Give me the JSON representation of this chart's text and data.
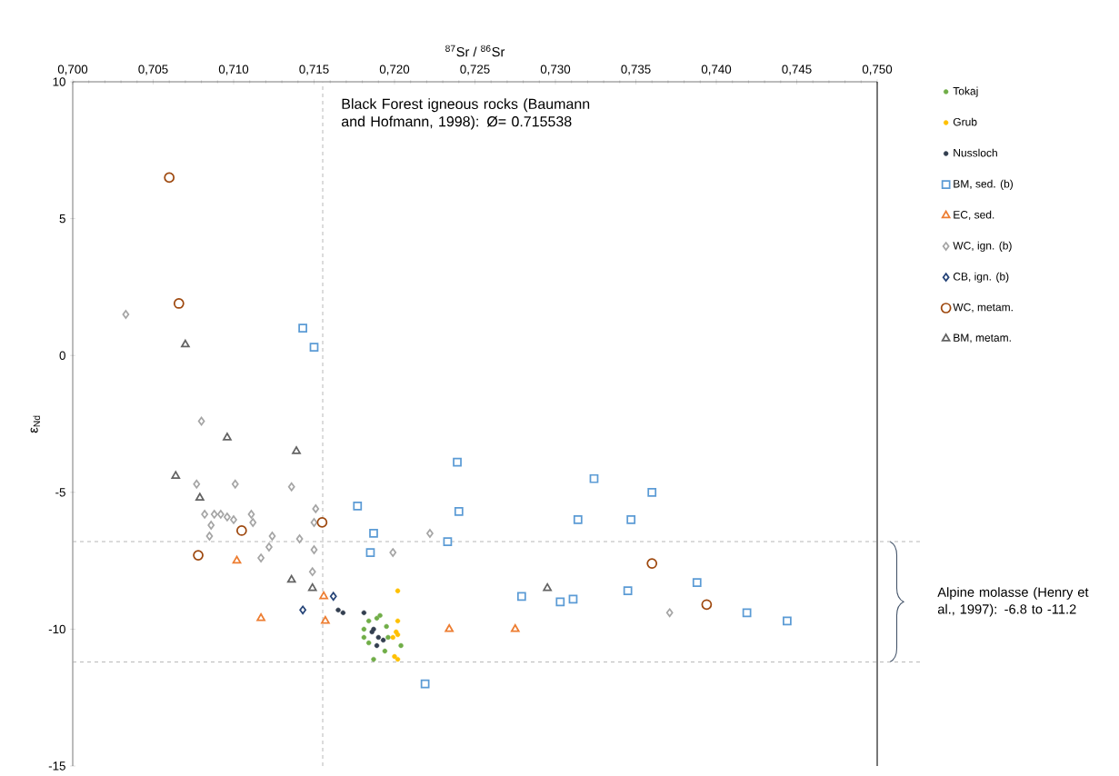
{
  "chart_data": {
    "type": "scatter",
    "xlabel": "$^{87}$Sr / $^{86}$Sr",
    "ylabel": "ε$_{Nd}$",
    "xlim": [
      0.7,
      0.75
    ],
    "xticks": [
      {
        "value": 0.7,
        "label": "0,700"
      },
      {
        "value": 0.705,
        "label": "0,705"
      },
      {
        "value": 0.71,
        "label": "0,710"
      },
      {
        "value": 0.715,
        "label": "0,715"
      },
      {
        "value": 0.72,
        "label": "0,720"
      },
      {
        "value": 0.725,
        "label": "0,725"
      },
      {
        "value": 0.73,
        "label": "0,730"
      },
      {
        "value": 0.735,
        "label": "0,735"
      },
      {
        "value": 0.74,
        "label": "0,740"
      },
      {
        "value": 0.745,
        "label": "0,745"
      },
      {
        "value": 0.75,
        "label": "0,750"
      }
    ],
    "ylim": [
      -15,
      10
    ],
    "yticks": [
      10,
      5,
      0,
      -5,
      -10,
      -15
    ],
    "legend": "right",
    "series": [
      {
        "name": "Tokaj",
        "color": "#70ad47",
        "x": [
          0.7191,
          0.7184,
          0.7195,
          0.7181,
          0.7181,
          0.7184,
          0.7194,
          0.7187,
          0.7204,
          0.7196,
          0.7191,
          0.7189
        ],
        "values": [
          -9.5,
          -9.7,
          -9.9,
          -10.0,
          -10.3,
          -10.5,
          -10.8,
          -11.1,
          -10.6,
          -10.3,
          null,
          -9.6
        ]
      },
      {
        "name": "Grub",
        "color": "#ffc000",
        "x": [
          0.7202,
          0.7202,
          0.7201,
          0.7202,
          0.7199,
          0.72,
          0.7202
        ],
        "values": [
          -8.6,
          -9.7,
          -10.1,
          -10.2,
          -10.3,
          -11.0,
          -11.1
        ]
      },
      {
        "name": "Nussloch",
        "color": "#333f50",
        "x": [
          0.7165,
          0.7168,
          0.7181,
          0.7186,
          0.719,
          0.7193,
          0.7189,
          0.7187
        ],
        "values": [
          -9.3,
          -9.4,
          -9.4,
          -10.1,
          -10.3,
          -10.4,
          -10.6,
          -10.0
        ]
      },
      {
        "name": "BM, sed. (b)",
        "color": "#5b9bd5",
        "marker": "square",
        "x": [
          0.7143,
          0.715,
          0.7177,
          0.7187,
          0.7185,
          0.7239,
          0.724,
          0.7233,
          0.7219,
          0.7279,
          0.7303,
          0.7311,
          0.7314,
          0.7324,
          0.7347,
          0.7345,
          0.736,
          0.7388,
          0.7419,
          0.7444
        ],
        "values": [
          1.0,
          0.3,
          -5.5,
          -6.5,
          -7.2,
          -3.9,
          -5.7,
          -6.8,
          -12.0,
          -8.8,
          -9.0,
          -8.9,
          -6.0,
          -4.5,
          -6.0,
          -8.6,
          -5.0,
          -8.3,
          -9.4,
          -9.7
        ]
      },
      {
        "name": "EC, sed.",
        "color": "#ed7d31",
        "marker": "triangle",
        "x": [
          0.7102,
          0.7117,
          0.7156,
          0.7157,
          0.7234,
          0.7275
        ],
        "values": [
          -7.5,
          -9.6,
          -8.8,
          -9.7,
          -10.0,
          -10.0
        ]
      },
      {
        "name": "WC, ign. (b)",
        "color": "#a5a5a5",
        "marker": "diamond",
        "x": [
          0.7033,
          0.708,
          0.7077,
          0.7101,
          0.7136,
          0.7082,
          0.7088,
          0.7092,
          0.7096,
          0.71,
          0.7111,
          0.7112,
          0.7086,
          0.7085,
          0.7124,
          0.7122,
          0.7117,
          0.7141,
          0.715,
          0.7151,
          0.715,
          0.7149,
          0.7199,
          0.7222,
          0.7371
        ],
        "values": [
          1.5,
          -2.4,
          -4.7,
          -4.7,
          -4.8,
          -5.8,
          -5.8,
          -5.8,
          -5.9,
          -6.0,
          -5.8,
          -6.1,
          -6.2,
          -6.6,
          -6.6,
          -7.0,
          -7.4,
          -6.7,
          -7.1,
          -5.6,
          -6.1,
          -7.9,
          -7.2,
          -6.5,
          -9.4
        ]
      },
      {
        "name": "CB, ign. (b)",
        "color": "#264478",
        "marker": "diamond",
        "x": [
          0.7162,
          0.7143
        ],
        "values": [
          -8.8,
          -9.3
        ]
      },
      {
        "name": "WC, metam.",
        "color": "#9e480e",
        "marker": "circle",
        "x": [
          0.706,
          0.7066,
          0.7155,
          0.7105,
          0.7078,
          0.736,
          0.7394
        ],
        "values": [
          6.5,
          1.9,
          -6.1,
          -6.4,
          -7.3,
          -7.6,
          -9.1
        ]
      },
      {
        "name": "BM, metam.",
        "color": "#636363",
        "marker": "triangle",
        "x": [
          0.707,
          0.7096,
          0.7139,
          0.7064,
          0.7079,
          0.7136,
          0.7149,
          0.7295
        ],
        "values": [
          0.4,
          -3.0,
          -3.5,
          -4.4,
          -5.2,
          -8.2,
          -8.5,
          -8.5
        ]
      }
    ],
    "ref_lines": [
      {
        "axis": "x",
        "value": 0.715538,
        "label": "Black Forest igneous rocks (Baumann and Hofmann, 1998): Ø= 0.715538",
        "color": "#a6a6a6",
        "line_style": "dashed"
      },
      {
        "axis": "y",
        "value": -6.8,
        "color": "#a6a6a6",
        "line_style": "dashed"
      },
      {
        "axis": "y",
        "value": -11.2,
        "color": "#a6a6a6",
        "line_style": "dashed"
      }
    ],
    "annotations": [
      "Alpine molasse (Henry et al., 1997): -6.8 to -11.2"
    ]
  }
}
